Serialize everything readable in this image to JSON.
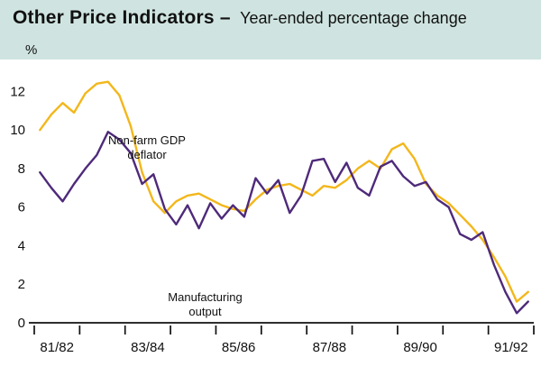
{
  "header": {
    "title_bold": "Other Price Indicators –",
    "title_rest": "Year-ended percentage change",
    "unit_label": "%"
  },
  "colors": {
    "header_bg": "#cfe4e0",
    "axis": "#111111",
    "nonfarm_yellow": "#f3b71b",
    "manufacturing_purple": "#4e2a7a"
  },
  "chart_data": {
    "type": "line",
    "title": "Other Price Indicators – Year-ended percentage change",
    "xlabel": "",
    "ylabel": "%",
    "grid": false,
    "legend_position": "annotations-on-chart",
    "ylim": [
      0,
      13
    ],
    "y_ticks": [
      0,
      2,
      4,
      6,
      8,
      10,
      12
    ],
    "x_tick_labels": [
      "81/82",
      "83/84",
      "85/86",
      "87/88",
      "89/90",
      "91/92"
    ],
    "x_unit": "quarterly, fiscal years",
    "quarters_per_label": 8,
    "series": [
      {
        "name": "Non-farm GDP deflator",
        "color": "#f3b71b",
        "values": [
          10.0,
          10.8,
          11.4,
          10.9,
          11.9,
          12.4,
          12.5,
          11.8,
          10.2,
          7.8,
          6.3,
          5.7,
          6.3,
          6.6,
          6.7,
          6.4,
          6.1,
          5.9,
          5.8,
          6.4,
          6.9,
          7.1,
          7.2,
          6.9,
          6.6,
          7.1,
          7.0,
          7.4,
          8.0,
          8.4,
          8.0,
          9.0,
          9.3,
          8.5,
          7.2,
          6.6,
          6.2,
          5.6,
          5.0,
          4.3,
          3.4,
          2.4,
          1.1,
          1.6
        ]
      },
      {
        "name": "Manufacturing output",
        "color": "#4e2a7a",
        "values": [
          7.8,
          7.0,
          6.3,
          7.2,
          8.0,
          8.7,
          9.9,
          9.5,
          8.8,
          7.2,
          7.7,
          5.9,
          5.1,
          6.1,
          4.9,
          6.2,
          5.4,
          6.1,
          5.5,
          7.5,
          6.7,
          7.4,
          5.7,
          6.6,
          8.4,
          8.5,
          7.3,
          8.3,
          7.0,
          6.6,
          8.1,
          8.4,
          7.6,
          7.1,
          7.3,
          6.4,
          6.0,
          4.6,
          4.3,
          4.7,
          3.0,
          1.6,
          0.5,
          1.1
        ]
      }
    ],
    "annotations": [
      {
        "lines": [
          "Non-farm GDP",
          "deflator"
        ]
      },
      {
        "lines": [
          "Manufacturing",
          "output"
        ]
      }
    ]
  }
}
